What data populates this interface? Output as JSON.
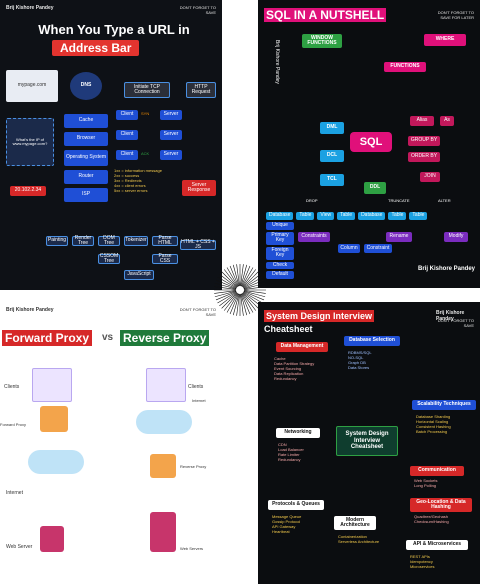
{
  "panel1": {
    "author": "Brij Kishore Pandey",
    "dont_forget": "DON'T FORGET TO SAVE",
    "title_line1": "When You Type a URL in",
    "title_line2": "Address Bar",
    "url_text": "mypage.com",
    "dns": "DNS",
    "tcp": "Initiate TCP Connection",
    "http": "HTTP Request",
    "cache": "Cache",
    "browser": "Browser",
    "os": "Operating System",
    "router": "Router",
    "isp": "ISP",
    "client": "Client",
    "server": "Server",
    "syn": "SYN",
    "ack": "ACK",
    "notes": [
      "1xx = information message",
      "2xx = success",
      "3xx = Redirects",
      "4xx = client errors",
      "5xx = server errors"
    ],
    "server_response": "Server Response",
    "ip": "20.102.2.34",
    "whats_ip": "What's the IP of www.mypage.com?",
    "painting": "Painting",
    "render_tree": "Render Tree",
    "dom_tree": "DOM Tree",
    "cssom_tree": "CSSOM Tree",
    "tokenizer": "Tokenizer",
    "parse_html": "Parse HTML",
    "parse_css": "Parse CSS",
    "html_css_js": "HTML + CSS + JS",
    "javascript": "JavaScript"
  },
  "panel2": {
    "title": "SQL IN A NUTSHELL",
    "author": "Brij Kishore Pandey",
    "dont_forget": "DON'T FORGET TO SAVE FOR LATER",
    "sql": "SQL",
    "window_functions": "WINDOW FUNCTIONS",
    "where": "WHERE",
    "functions": "FUNCTIONS",
    "dml": "DML",
    "dcl": "DCL",
    "tcl": "TCL",
    "ddl": "DDL",
    "alias": "Alias",
    "as": "As",
    "group_by": "GROUP BY",
    "order_by": "ORDER BY",
    "join": "JOIN",
    "truncate": "TRUNCATE",
    "alter": "ALTER",
    "drop": "DROP",
    "ddl_items": [
      "Database",
      "Table",
      "View",
      "Table",
      "Database",
      "Table",
      "Table"
    ],
    "constraints": "Constraints",
    "rename": "Rename",
    "modify": "Modify",
    "unique": "Unique",
    "primary_key": "Primary Key",
    "foreign_key": "Foreign Key",
    "check": "Check",
    "default": "Default",
    "column": "Column",
    "constraint": "Constraint",
    "footer_author": "Brij Kishore Pandey"
  },
  "panel3": {
    "author": "Brij Kishore Pandey",
    "dont_forget": "DON'T FORGET TO SAVE",
    "forward": "Forward Proxy",
    "vs": "vs",
    "reverse": "Reverse Proxy",
    "clients_left": "Clients",
    "clients_right": "Clients",
    "forward_proxy_label": "Forward Proxy",
    "internet_left": "Internet",
    "internet_right": "Internet",
    "web_server": "Web Server",
    "reverse_proxy_label": "Reverse Proxy",
    "web_servers": "Web Servers"
  },
  "panel4": {
    "author": "Brij Kishore Pandey",
    "dont_forget": "DON'T FORGET TO SAVE",
    "title_line1": "System Design Interview",
    "title_line2": "Cheatsheet",
    "center": "System Design Interview Cheatsheet",
    "data_management": "Data Management",
    "database_selection": "Database Selection",
    "scalability": "Scalability Techniques",
    "networking": "Networking",
    "communication": "Communication",
    "protocols": "Protocols & Queues",
    "geo": "Geo-Location & Data Hashing",
    "modern": "Modern Architecture",
    "api": "API & Microservices",
    "dm_items": [
      "Cache",
      "Data Partition Strategy",
      "Event Sourcing",
      "Data Replication",
      "Redundancy"
    ],
    "db_items": [
      "RDBMS/SQL",
      "NO-SQL",
      "Graph DB",
      "Data Stores"
    ],
    "scal_items": [
      "Database Sharding",
      "Horizontal Scaling",
      "Consistent Hashing",
      "Batch Processing"
    ],
    "net_items": [
      "CDN",
      "Load Balancer",
      "Rate Limiter",
      "Redundancy"
    ],
    "comm_items": [
      "Web Sockets",
      "Long Polling"
    ],
    "proto_items": [
      "Message Queue",
      "Gossip Protocol",
      "API Gateway",
      "Heartbeat"
    ],
    "geo_items": [
      "Quadtree/Geohash",
      "Checksum/Hashing"
    ],
    "modern_items": [
      "Containerization",
      "Serverless Architecture"
    ],
    "api_items": [
      "REST APIs",
      "Idempotency",
      "Microservices"
    ]
  },
  "colors": {
    "dark": "#0e1116",
    "red_title": "#e3342f",
    "sql_pink": "#e0107a",
    "green": "#2ea043",
    "cyan": "#1ba1e2",
    "magenta": "#c2185b",
    "blue": "#1f4fd6",
    "orange": "#f08c00",
    "proxy_red": "#d62828",
    "proxy_green": "#1f7a3a"
  }
}
